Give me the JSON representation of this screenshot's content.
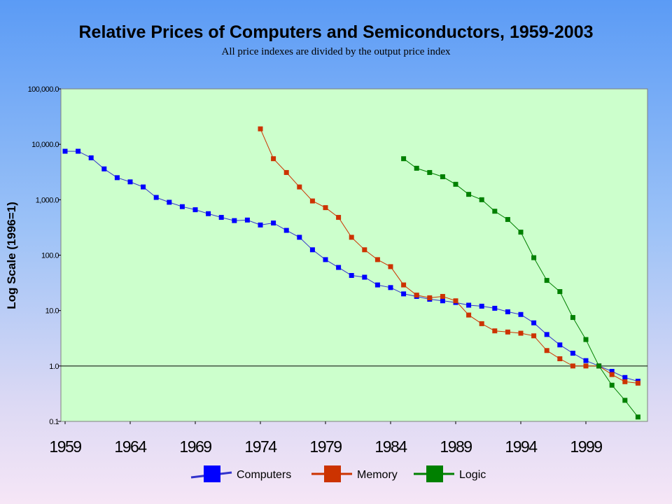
{
  "chart_data": {
    "type": "line",
    "title": "Relative Prices of Computers and Semiconductors, 1959-2003",
    "subtitle": "All price indexes are divided by the output price index",
    "ylabel": "Log Scale (1996=1)",
    "xlabel": "",
    "y_scale": "log",
    "ylim": [
      0.1,
      100000
    ],
    "xlim": [
      1959,
      2004
    ],
    "y_ticks": [
      {
        "value": 0.1,
        "label": "0.1"
      },
      {
        "value": 1,
        "label": "1.0"
      },
      {
        "value": 10,
        "label": "10.0"
      },
      {
        "value": 100,
        "label": "100.0"
      },
      {
        "value": 1000,
        "label": "1,000.0"
      },
      {
        "value": 10000,
        "label": "10,000.0"
      },
      {
        "value": 100000,
        "label": "100,000.0"
      }
    ],
    "x_ticks": [
      {
        "value": 1959,
        "label": "1959"
      },
      {
        "value": 1964,
        "label": "1964"
      },
      {
        "value": 1969,
        "label": "1969"
      },
      {
        "value": 1974,
        "label": "1974"
      },
      {
        "value": 1979,
        "label": "1979"
      },
      {
        "value": 1984,
        "label": "1984"
      },
      {
        "value": 1989,
        "label": "1989"
      },
      {
        "value": 1994,
        "label": "1994"
      },
      {
        "value": 1999,
        "label": "1999"
      }
    ],
    "reference_line": 1,
    "grid": false,
    "legend_position": "bottom",
    "plot_background": "#ccffcc",
    "series": [
      {
        "name": "Computers",
        "color": "#0000ff",
        "line_color": "#3333cc",
        "x": [
          1959,
          1960,
          1961,
          1962,
          1963,
          1964,
          1965,
          1966,
          1967,
          1968,
          1969,
          1970,
          1971,
          1972,
          1973,
          1974,
          1975,
          1976,
          1977,
          1978,
          1979,
          1980,
          1981,
          1982,
          1983,
          1984,
          1985,
          1986,
          1987,
          1988,
          1989,
          1990,
          1991,
          1992,
          1993,
          1994,
          1995,
          1996,
          1997,
          1998,
          1999,
          2000,
          2001,
          2002,
          2003
        ],
        "values": [
          7500,
          7500,
          5700,
          3600,
          2500,
          2100,
          1700,
          1100,
          900,
          750,
          660,
          560,
          480,
          420,
          430,
          350,
          380,
          280,
          210,
          125,
          83,
          60,
          43,
          40,
          29,
          26,
          20,
          18,
          16,
          15,
          14,
          12.5,
          12,
          11,
          9.5,
          8.5,
          6,
          3.7,
          2.4,
          1.7,
          1.25,
          1,
          0.8,
          0.62,
          0.53
        ]
      },
      {
        "name": "Memory",
        "color": "#cc3300",
        "line_color": "#cc3300",
        "x": [
          1974,
          1975,
          1976,
          1977,
          1978,
          1979,
          1980,
          1981,
          1982,
          1983,
          1984,
          1985,
          1986,
          1987,
          1988,
          1989,
          1990,
          1991,
          1992,
          1993,
          1994,
          1995,
          1996,
          1997,
          1998,
          1999,
          2000,
          2001,
          2002,
          2003
        ],
        "values": [
          19000,
          5500,
          3100,
          1700,
          950,
          720,
          480,
          210,
          125,
          83,
          62,
          29,
          19,
          17,
          18,
          15,
          8.3,
          5.8,
          4.3,
          4.1,
          3.9,
          3.5,
          1.9,
          1.35,
          1,
          1,
          1,
          0.7,
          0.52,
          0.49
        ]
      },
      {
        "name": "Logic",
        "color": "#008000",
        "line_color": "#008000",
        "x": [
          1985,
          1986,
          1987,
          1988,
          1989,
          1990,
          1991,
          1992,
          1993,
          1994,
          1995,
          1996,
          1997,
          1998,
          1999,
          2000,
          2001,
          2002,
          2003
        ],
        "values": [
          5500,
          3700,
          3100,
          2600,
          1900,
          1250,
          1000,
          620,
          440,
          260,
          90,
          35,
          22,
          7.5,
          3,
          1,
          0.45,
          0.24,
          0.12
        ]
      }
    ]
  }
}
